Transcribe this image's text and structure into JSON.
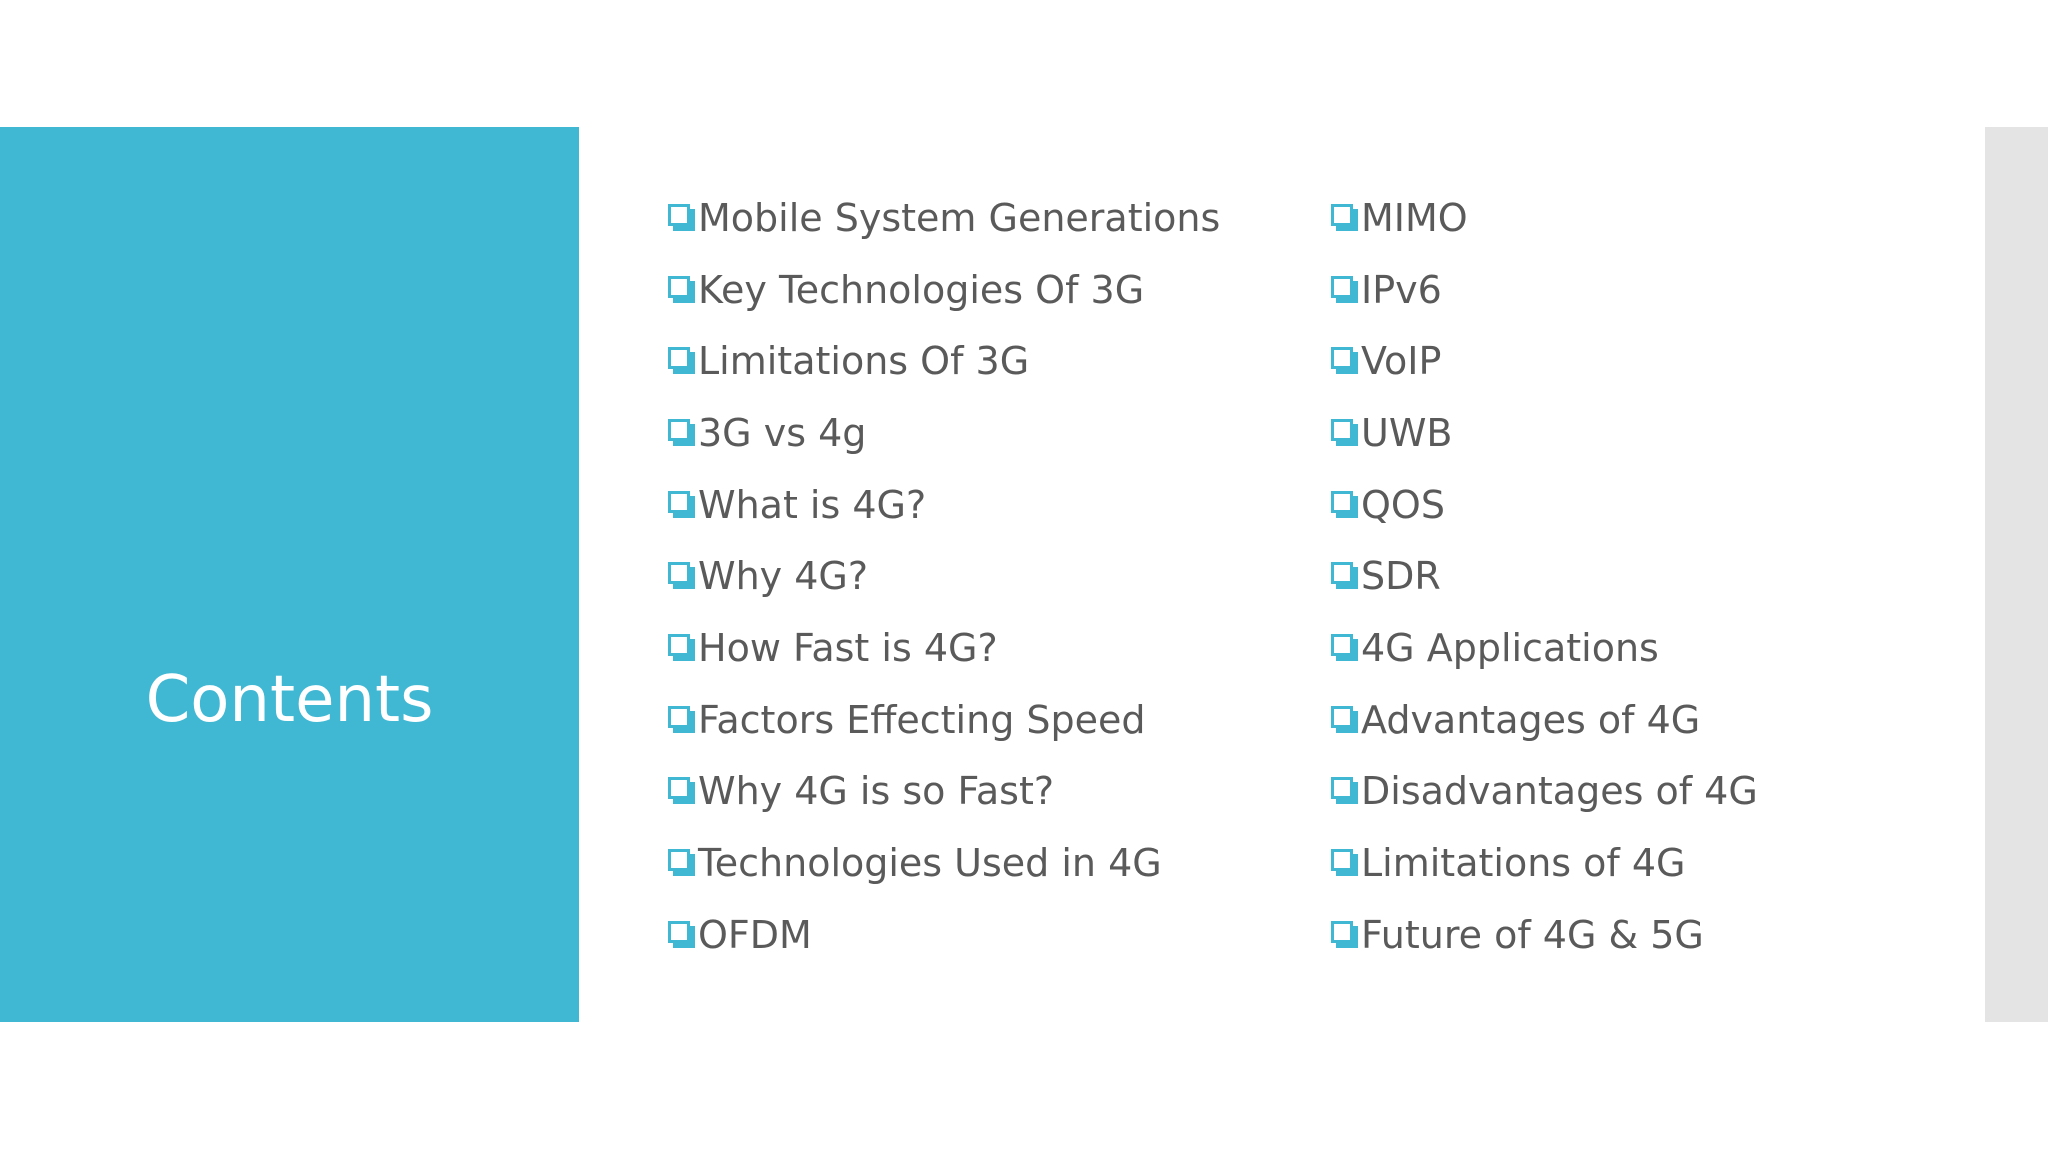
{
  "slide": {
    "title": "Contents",
    "accent_color": "#40b8d4",
    "strip_color": "#e4e4e4",
    "text_color": "#5a5a5a",
    "bullet_icon": "square-checkbox-bullet-icon"
  },
  "contents": {
    "left_items": [
      "Mobile System Generations",
      "Key Technologies Of 3G",
      "Limitations Of 3G",
      "3G vs 4g",
      "What is 4G?",
      "Why 4G?",
      "How Fast is 4G?",
      "Factors Effecting Speed",
      "Why 4G is so Fast?",
      "Technologies Used in 4G",
      "OFDM"
    ],
    "right_items": [
      "MIMO",
      "IPv6",
      "VoIP",
      "UWB",
      "QOS",
      "SDR",
      "4G Applications",
      "Advantages of 4G",
      "Disadvantages of 4G",
      "Limitations of 4G",
      "Future of 4G & 5G"
    ]
  }
}
